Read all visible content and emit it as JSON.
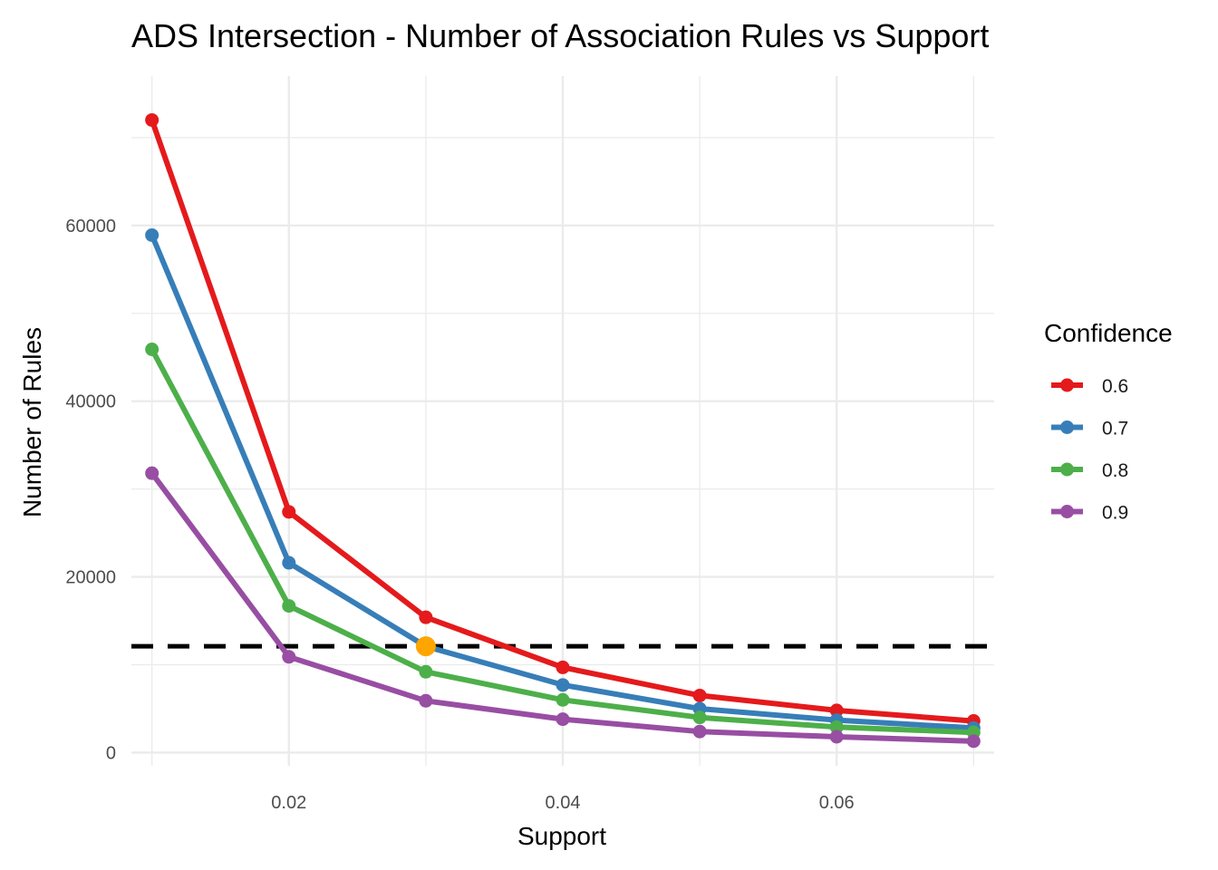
{
  "chart_data": {
    "type": "line",
    "title": "ADS Intersection - Number of Association Rules vs Support",
    "xlabel": "Support",
    "ylabel": "Number of Rules",
    "x": [
      0.01,
      0.02,
      0.03,
      0.04,
      0.05,
      0.06,
      0.07
    ],
    "xlim": [
      0.0085,
      0.0715
    ],
    "ylim": [
      -1500,
      77000
    ],
    "x_ticks": [
      0.02,
      0.04,
      0.06
    ],
    "x_tick_labels": [
      "0.02",
      "0.04",
      "0.06"
    ],
    "x_minor_ticks": [
      0.01,
      0.03,
      0.05,
      0.07
    ],
    "y_ticks": [
      0,
      20000,
      40000,
      60000
    ],
    "y_tick_labels": [
      "0",
      "20000",
      "40000",
      "60000"
    ],
    "y_minor_ticks": [
      10000,
      30000,
      50000,
      70000
    ],
    "grid": true,
    "legend": {
      "title": "Confidence",
      "position": "right"
    },
    "series": [
      {
        "name": "0.6",
        "color": "#e41a1c",
        "values": [
          72000,
          27400,
          15400,
          9700,
          6500,
          4800,
          3600
        ]
      },
      {
        "name": "0.7",
        "color": "#377eb8",
        "values": [
          58900,
          21600,
          12100,
          7700,
          5000,
          3700,
          2800
        ]
      },
      {
        "name": "0.8",
        "color": "#4daf4a",
        "values": [
          45900,
          16700,
          9200,
          6000,
          4000,
          2900,
          2300
        ]
      },
      {
        "name": "0.9",
        "color": "#984ea3",
        "values": [
          31800,
          10900,
          5900,
          3800,
          2400,
          1800,
          1300
        ]
      }
    ],
    "threshold_line": {
      "y": 12100,
      "color": "#000000",
      "style": "dashed"
    },
    "highlight_point": {
      "x": 0.03,
      "y": 12100,
      "color": "#ffa500"
    }
  }
}
